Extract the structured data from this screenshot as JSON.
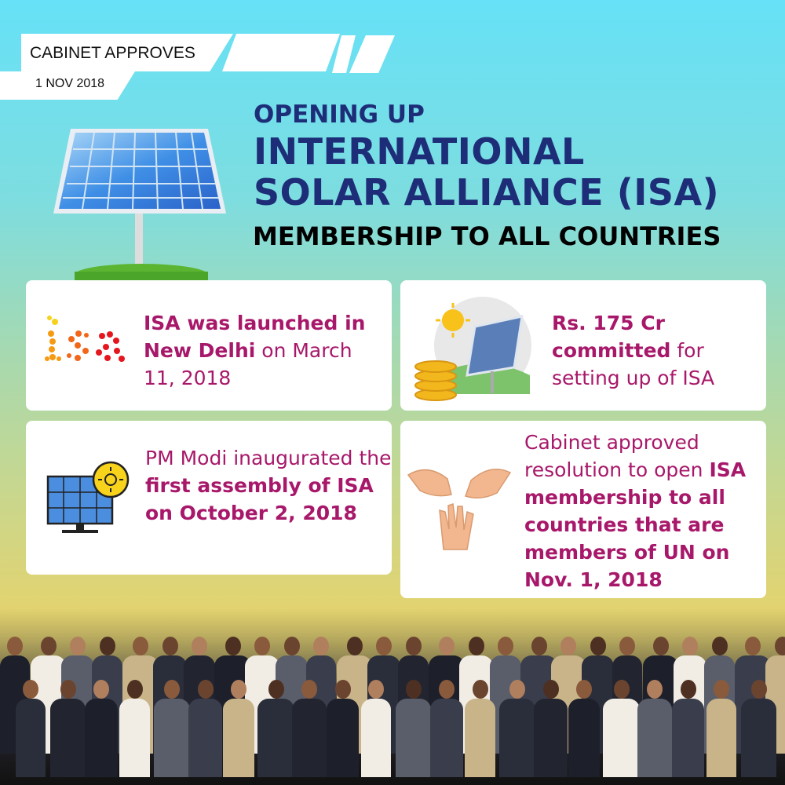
{
  "banner": {
    "label": "CABINET APPROVES",
    "date": "1 NOV 2018"
  },
  "title": {
    "line1": "OPENING UP",
    "line2": "INTERNATIONAL",
    "line3": "SOLAR ALLIANCE (ISA)",
    "line4": "MEMBERSHIP TO ALL COUNTRIES"
  },
  "cards": [
    {
      "icon": "isa-logo-icon",
      "logo_text": "isa",
      "bold1": "ISA was launched in New Delhi",
      "rest": " on March 11, 2018"
    },
    {
      "icon": "solar-coins-icon",
      "bold1": "Rs. 175 Cr committed",
      "rest": " for setting up of ISA"
    },
    {
      "icon": "solar-panel-sun-icon",
      "pre": "PM Modi inaugurated the ",
      "bold1": "first assembly of ISA on October 2, 2018"
    },
    {
      "icon": "hands-icon",
      "pre": "Cabinet approved resolution to open ",
      "bold1": "ISA membership to all countries that are members of UN on Nov. 1, 2018"
    }
  ],
  "colors": {
    "accent": "#a8186a",
    "title": "#1e2d78",
    "bg_top": "#66e1f7",
    "bg_bottom": "#e9cf6a"
  }
}
